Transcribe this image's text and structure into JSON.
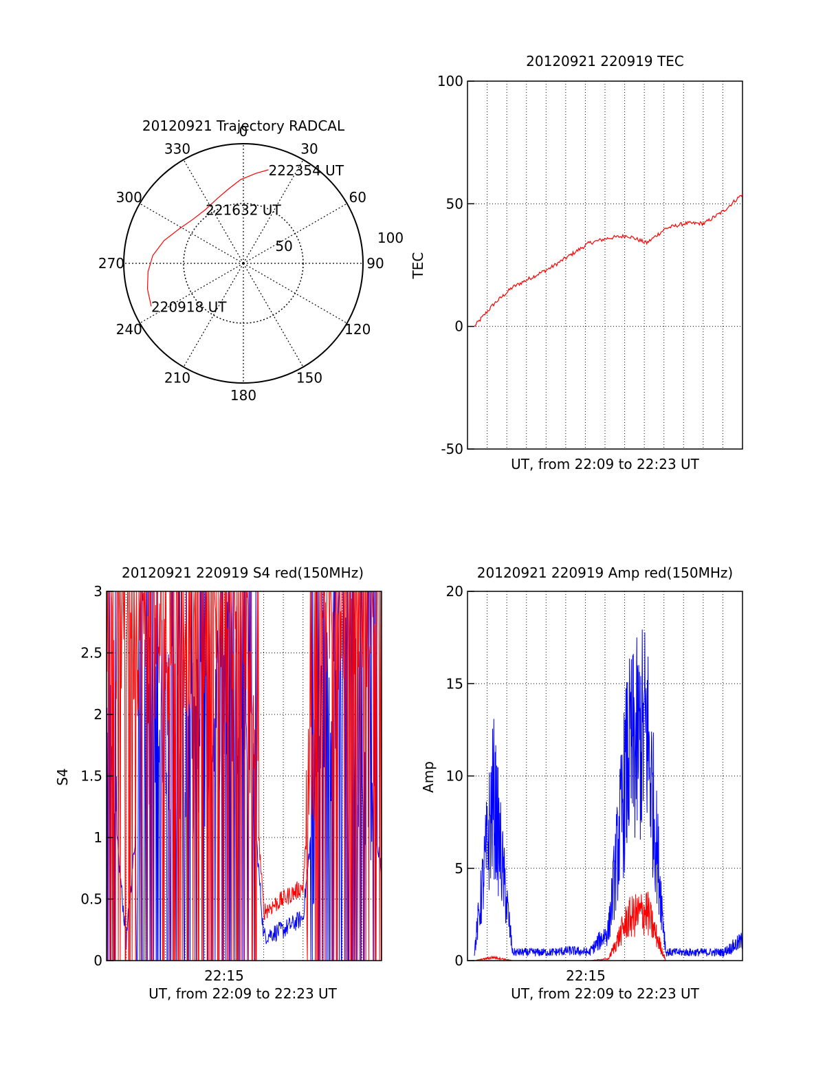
{
  "colors": {
    "red": "#ff0000",
    "blue": "#0000ff",
    "axis": "#000000"
  },
  "chart_data": [
    {
      "type": "polar",
      "title": "20120921 Trajectory RADCAL",
      "azimuth_labels": [
        "0",
        "30",
        "60",
        "90",
        "120",
        "150",
        "180",
        "210",
        "240",
        "270",
        "300",
        "330"
      ],
      "radius_labels": [
        "50",
        "100"
      ],
      "elevation_range": [
        0,
        100
      ],
      "trajectory": {
        "color": "red",
        "points": [
          {
            "az": 245,
            "r": 85
          },
          {
            "az": 255,
            "r": 83
          },
          {
            "az": 265,
            "r": 80
          },
          {
            "az": 275,
            "r": 76
          },
          {
            "az": 286,
            "r": 69
          },
          {
            "az": 298,
            "r": 61
          },
          {
            "az": 311,
            "r": 56
          },
          {
            "az": 325,
            "r": 55
          },
          {
            "az": 337,
            "r": 58
          },
          {
            "az": 348,
            "r": 63
          },
          {
            "az": 358,
            "r": 70
          },
          {
            "az": 8,
            "r": 76
          },
          {
            "az": 15,
            "r": 81
          }
        ],
        "labels": [
          {
            "text": "220918 UT",
            "az": 245,
            "r": 85
          },
          {
            "text": "221632 UT",
            "az": 325,
            "r": 55
          },
          {
            "text": "222354 UT",
            "az": 15,
            "r": 81
          }
        ]
      }
    },
    {
      "type": "line",
      "title": "20120921 220919 TEC",
      "xlabel": "UT, from 22:09 to 22:23 UT",
      "ylabel": "TEC",
      "ylim": [
        -50,
        100
      ],
      "yticks": [
        "-50",
        "0",
        "50",
        "100"
      ],
      "grid": true,
      "xrange": [
        "22:09",
        "22:23"
      ],
      "series": [
        {
          "color": "red",
          "x": [
            "22:09",
            "22:10",
            "22:11",
            "22:12",
            "22:13",
            "22:14",
            "22:15",
            "22:16",
            "22:17",
            "22:18",
            "22:19",
            "22:20",
            "22:21",
            "22:22",
            "22:23"
          ],
          "values": [
            0,
            9,
            16,
            20,
            24,
            29,
            34,
            36,
            37,
            34,
            40,
            42,
            42,
            47,
            54
          ]
        }
      ]
    },
    {
      "type": "line",
      "title": "20120921 220919 S4 red(150MHz)",
      "xlabel": "UT, from 22:09 to 22:23 UT",
      "ylabel": "S4",
      "ylim": [
        0,
        3
      ],
      "yticks": [
        "0",
        "0.5",
        "1",
        "1.5",
        "2",
        "2.5",
        "3"
      ],
      "xticks": [
        "22:15"
      ],
      "grid": true,
      "series": [
        {
          "color": "blue",
          "x": [
            "22:09",
            "22:10",
            "22:11",
            "22:12",
            "22:13",
            "22:14",
            "22:15",
            "22:16",
            "22:17",
            "22:18",
            "22:19",
            "22:20",
            "22:21",
            "22:22",
            "22:23"
          ],
          "values": [
            1.9,
            0.16,
            2.0,
            2.1,
            1.6,
            1.8,
            2.2,
            2.3,
            0.2,
            0.25,
            0.35,
            2.0,
            2.1,
            1.8,
            0.75
          ]
        },
        {
          "color": "red",
          "x": [
            "22:09",
            "22:10",
            "22:11",
            "22:12",
            "22:13",
            "22:14",
            "22:15",
            "22:16",
            "22:17",
            "22:18",
            "22:19",
            "22:20",
            "22:21",
            "22:22",
            "22:23"
          ],
          "values": [
            2.8,
            2.9,
            2.7,
            2.6,
            2.8,
            2.9,
            2.7,
            2.8,
            0.4,
            0.5,
            0.6,
            3.0,
            3.0,
            3.0,
            3.0
          ]
        }
      ]
    },
    {
      "type": "line",
      "title": "20120921 220919 Amp red(150MHz)",
      "xlabel": "UT, from 22:09 to 22:23 UT",
      "ylabel": "Amp",
      "ylim": [
        0,
        20
      ],
      "yticks": [
        "0",
        "5",
        "10",
        "15",
        "20"
      ],
      "xticks": [
        "22:15"
      ],
      "grid": true,
      "series": [
        {
          "color": "blue",
          "x": [
            "22:09",
            "22:10",
            "22:11",
            "22:12",
            "22:13",
            "22:14",
            "22:15",
            "22:16",
            "22:17",
            "22:18",
            "22:19",
            "22:20",
            "22:21",
            "22:22",
            "22:23"
          ],
          "values": [
            0.5,
            10,
            0.5,
            0.5,
            0.5,
            0.6,
            0.5,
            1.8,
            12,
            14,
            0.5,
            0.5,
            0.5,
            0.5,
            1.2
          ]
        },
        {
          "color": "red",
          "x": [
            "22:09",
            "22:10",
            "22:11",
            "22:12",
            "22:13",
            "22:14",
            "22:15",
            "22:16",
            "22:17",
            "22:18",
            "22:19",
            "22:20",
            "22:21",
            "22:22",
            "22:23"
          ],
          "values": [
            0,
            0.2,
            0,
            0,
            0,
            0,
            0,
            0.1,
            2.5,
            3.0,
            0,
            0,
            0,
            0,
            0
          ]
        }
      ]
    }
  ]
}
